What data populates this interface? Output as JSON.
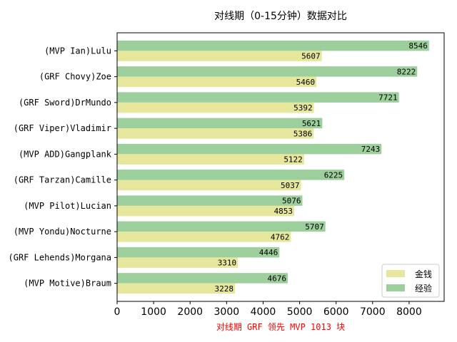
{
  "colors": {
    "gold": "#e6e69c",
    "exp": "#9ccf9c",
    "xlabel": "#ff0000",
    "axis": "#000000"
  },
  "chart_data": {
    "type": "bar",
    "orientation": "horizontal",
    "title": "对线期（0-15分钟）数据对比",
    "xlabel": "对线期 GRF 领先 MVP 1013 块",
    "ylabel": "",
    "xlim": [
      0,
      8960
    ],
    "xticks": [
      0,
      1000,
      2000,
      3000,
      4000,
      5000,
      6000,
      7000,
      8000
    ],
    "categories": [
      "(MVP Ian)Lulu",
      "(GRF Chovy)Zoe",
      "(GRF Sword)DrMundo",
      "(GRF Viper)Vladimir",
      "(MVP ADD)Gangplank",
      "(GRF Tarzan)Camille",
      "(MVP Pilot)Lucian",
      "(MVP Yondu)Nocturne",
      "(GRF Lehends)Morgana",
      "(MVP Motive)Braum"
    ],
    "series": [
      {
        "name": "金钱",
        "color": "#e6e69c",
        "values": [
          5607,
          5460,
          5392,
          5386,
          5122,
          5037,
          4853,
          4762,
          3310,
          3228
        ]
      },
      {
        "name": "经验",
        "color": "#9ccf9c",
        "values": [
          8546,
          8222,
          7721,
          5621,
          7243,
          6225,
          5076,
          5707,
          4446,
          4676
        ]
      }
    ],
    "legend_position": "bottom-right",
    "grid": false
  }
}
